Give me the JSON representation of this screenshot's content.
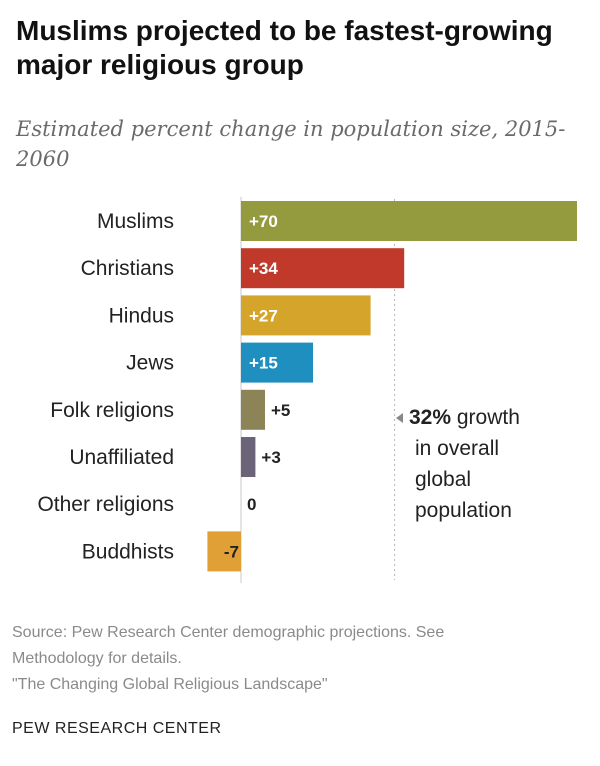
{
  "title": "Muslims projected to be fastest-growing major religious group",
  "subtitle": "Estimated percent change in population size, 2015-2060",
  "annotation": {
    "value": "32%",
    "text_rest": " growth",
    "line2": "in overall",
    "line3": "global",
    "line4": "population"
  },
  "source": {
    "line1": "Source: Pew Research Center demographic projections. See",
    "line2": "Methodology for details.",
    "line3": "\"The Changing Global Religious Landscape\""
  },
  "brand": "PEW RESEARCH CENTER",
  "chart_data": {
    "type": "bar",
    "orientation": "horizontal",
    "categories": [
      "Muslims",
      "Christians",
      "Hindus",
      "Jews",
      "Folk religions",
      "Unaffiliated",
      "Other religions",
      "Buddhists"
    ],
    "values": [
      70,
      34,
      27,
      15,
      5,
      3,
      0,
      -7
    ],
    "labels": [
      "+70",
      "+34",
      "+27",
      "+15",
      "+5",
      "+3",
      "0",
      "-7"
    ],
    "colors": [
      "#949b3f",
      "#c0392b",
      "#d4a52a",
      "#1f8fc0",
      "#8c8456",
      "#6b6478",
      "#9a9a9a",
      "#e0a035"
    ],
    "reference_line": {
      "value": 32
    },
    "xlim": [
      -7,
      70
    ],
    "grid": false,
    "legend": "none"
  }
}
